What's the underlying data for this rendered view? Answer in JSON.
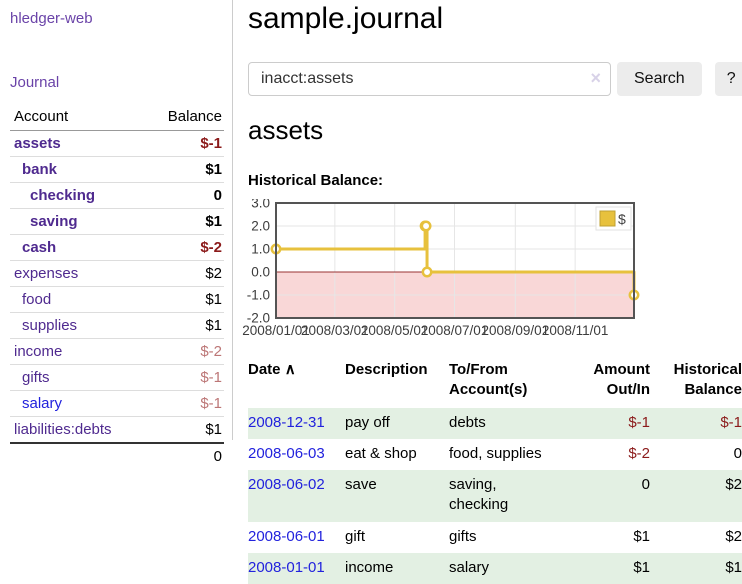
{
  "app": {
    "title": "hledger-web"
  },
  "sidebar": {
    "nav": [
      {
        "label": "Journal"
      }
    ],
    "accounts_table": {
      "headers": {
        "account": "Account",
        "balance": "Balance"
      },
      "rows": [
        {
          "name": "assets",
          "balance": "$-1",
          "level": 1,
          "bold": true,
          "balance_style": "neg-strong",
          "link_style": "purple"
        },
        {
          "name": "bank",
          "balance": "$1",
          "level": 2,
          "bold": true,
          "balance_style": "pos",
          "link_style": "purple"
        },
        {
          "name": "checking",
          "balance": "0",
          "level": 3,
          "bold": true,
          "balance_style": "pos",
          "link_style": "purple"
        },
        {
          "name": "saving",
          "balance": "$1",
          "level": 3,
          "bold": true,
          "balance_style": "pos",
          "link_style": "purple"
        },
        {
          "name": "cash",
          "balance": "$-2",
          "level": 2,
          "bold": true,
          "balance_style": "neg-strong",
          "link_style": "purple"
        },
        {
          "name": "expenses",
          "balance": "$2",
          "level": 1,
          "bold": false,
          "balance_style": "pos",
          "link_style": "purple"
        },
        {
          "name": "food",
          "balance": "$1",
          "level": 2,
          "bold": false,
          "balance_style": "pos",
          "link_style": "purple"
        },
        {
          "name": "supplies",
          "balance": "$1",
          "level": 2,
          "bold": false,
          "balance_style": "pos",
          "link_style": "purple"
        },
        {
          "name": "income",
          "balance": "$-2",
          "level": 1,
          "bold": false,
          "balance_style": "neg-muted",
          "link_style": "purple"
        },
        {
          "name": "gifts",
          "balance": "$-1",
          "level": 2,
          "bold": false,
          "balance_style": "neg-muted",
          "link_style": "purple"
        },
        {
          "name": "salary",
          "balance": "$-1",
          "level": 2,
          "bold": false,
          "balance_style": "neg-muted",
          "link_style": "blue"
        },
        {
          "name": "liabilities:debts",
          "balance": "$1",
          "level": 1,
          "bold": false,
          "balance_style": "pos",
          "link_style": "purple"
        }
      ],
      "total": "0"
    }
  },
  "header": {
    "title": "sample.journal"
  },
  "search": {
    "value": "inacct:assets",
    "clear_icon": "×",
    "button_label": "Search",
    "help_label": "?"
  },
  "account_page": {
    "title": "assets",
    "chart_label": "Historical Balance:"
  },
  "chart_data": {
    "type": "line",
    "title": "Historical Balance",
    "step": true,
    "series": [
      {
        "name": "$",
        "color": "#e7c13d",
        "points": [
          [
            "2008-01-01",
            1
          ],
          [
            "2008-06-01",
            2
          ],
          [
            "2008-06-02",
            2
          ],
          [
            "2008-06-03",
            0
          ],
          [
            "2008-12-31",
            -1
          ]
        ]
      }
    ],
    "xlim": [
      "2008-01-01",
      "2008-12-31"
    ],
    "ylim": [
      -2,
      3
    ],
    "y_ticks": [
      3.0,
      2.0,
      1.0,
      0.0,
      -1.0,
      -2.0
    ],
    "x_ticks": [
      {
        "label": "2008/01/01",
        "date": "2008-01-01"
      },
      {
        "label": "2008/03/01",
        "date": "2008-03-01"
      },
      {
        "label": "2008/05/01",
        "date": "2008-05-01"
      },
      {
        "label": "2008/07/01",
        "date": "2008-07-01"
      },
      {
        "label": "2008/09/01",
        "date": "2008-09-01"
      },
      {
        "label": "2008/11/01",
        "date": "2008-11-01"
      }
    ],
    "grid": true,
    "negative_region_color": "#f9d7d7",
    "zero_line_color": "#993333",
    "border_color": "#545454",
    "grid_color": "#e6e6e6",
    "legend": {
      "label": "$",
      "position": "top-right"
    }
  },
  "table": {
    "headers": [
      {
        "label": "Date",
        "icon": "∧"
      },
      {
        "label": "Description"
      },
      {
        "label": "To/From Account(s)"
      },
      {
        "label": "Amount Out/In"
      },
      {
        "label": "Historical Balance"
      }
    ],
    "rows": [
      {
        "date": "2008-12-31",
        "description": "pay off",
        "accounts": "debts",
        "amount": "$-1",
        "amount_negative": true,
        "balance": "$-1",
        "balance_negative": true
      },
      {
        "date": "2008-06-03",
        "description": "eat & shop",
        "accounts": "food, supplies",
        "amount": "$-2",
        "amount_negative": true,
        "balance": "0",
        "balance_negative": false
      },
      {
        "date": "2008-06-02",
        "description": "save",
        "accounts": "saving, checking",
        "amount": "0",
        "amount_negative": false,
        "balance": "$2",
        "balance_negative": false
      },
      {
        "date": "2008-06-01",
        "description": "gift",
        "accounts": "gifts",
        "amount": "$1",
        "amount_negative": false,
        "balance": "$2",
        "balance_negative": false
      },
      {
        "date": "2008-01-01",
        "description": "income",
        "accounts": "salary",
        "amount": "$1",
        "amount_negative": false,
        "balance": "$1",
        "balance_negative": false
      }
    ]
  },
  "colors": {
    "link_purple": "#4f2a8f",
    "link_blue": "#2222dd",
    "nav_purple": "#6a43a8",
    "negative_strong": "#8b1a1a",
    "negative_muted": "#bc7676",
    "row_green": "#e3f0e3",
    "series_gold": "#e7c13d"
  }
}
